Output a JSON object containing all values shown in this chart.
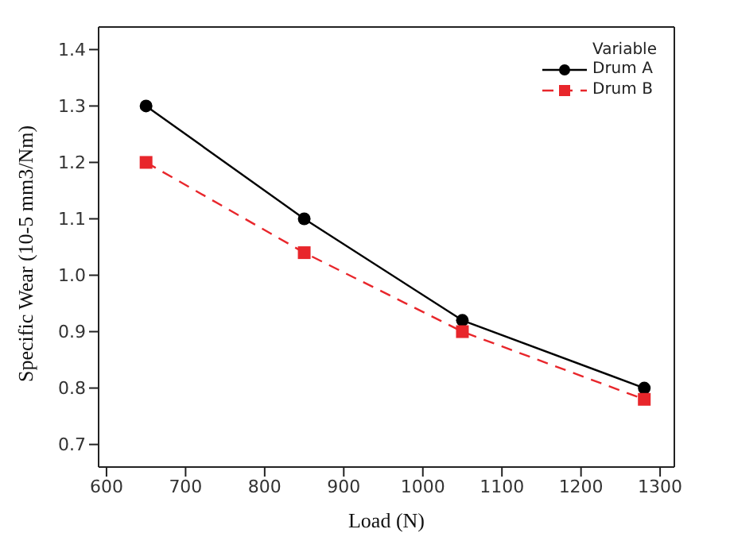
{
  "chart_data": {
    "type": "line",
    "xlabel": "Load (N)",
    "ylabel": "Specific Wear (10-5 mm3/Nm)",
    "legend_title": "Variable",
    "x": [
      650,
      850,
      1050,
      1280
    ],
    "series": [
      {
        "name": "Drum A",
        "color": "#000000",
        "values": [
          1.3,
          1.1,
          0.92,
          0.8
        ],
        "marker": "circle",
        "line_style": "solid"
      },
      {
        "name": "Drum B",
        "color": "#e8262b",
        "values": [
          1.2,
          1.04,
          0.9,
          0.78
        ],
        "marker": "square",
        "line_style": "dashed"
      }
    ],
    "xlim": [
      590,
      1318
    ],
    "xticks": [
      600,
      700,
      800,
      900,
      1000,
      1100,
      1200,
      1300
    ],
    "ylim": [
      0.66,
      1.44
    ],
    "yticks": [
      0.7,
      0.8,
      0.9,
      {
        "value": 1,
        "label": "1.0"
      },
      1.1,
      1.2,
      1.3,
      1.4
    ],
    "legend": "top right",
    "grid": false
  }
}
